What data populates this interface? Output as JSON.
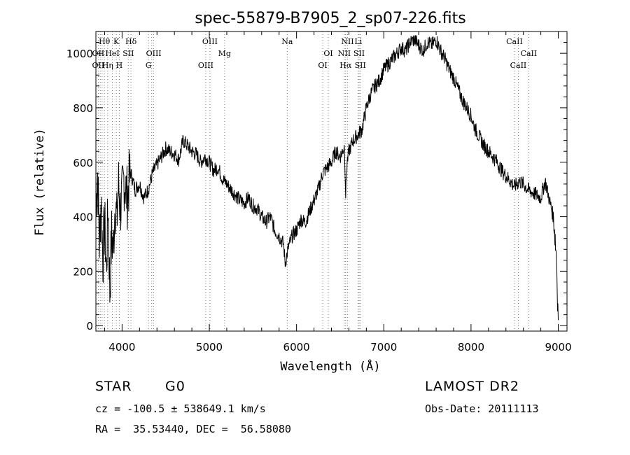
{
  "chart_data": {
    "type": "line",
    "title": "spec-55879-B7905_2_sp07-226.fits",
    "xlabel": "Wavelength (Å)",
    "ylabel": "Flux (relative)",
    "xlim": [
      3700,
      9100
    ],
    "ylim": [
      -20,
      1080
    ],
    "xticks": [
      4000,
      5000,
      6000,
      7000,
      8000,
      9000
    ],
    "yticks": [
      0,
      200,
      400,
      600,
      800,
      1000
    ],
    "grid": false,
    "series": [
      {
        "values_note": "",
        "x": [
          3700,
          3720,
          3740,
          3760,
          3780,
          3800,
          3820,
          3840,
          3860,
          3880,
          3900,
          3920,
          3940,
          3960,
          3980,
          4000,
          4020,
          4040,
          4060,
          4080,
          4100,
          4150,
          4200,
          4250,
          4300,
          4350,
          4400,
          4450,
          4500,
          4550,
          4600,
          4650,
          4700,
          4750,
          4800,
          4850,
          4900,
          4950,
          5000,
          5050,
          5100,
          5150,
          5200,
          5250,
          5300,
          5350,
          5400,
          5450,
          5500,
          5550,
          5600,
          5650,
          5700,
          5750,
          5800,
          5850,
          5870,
          5890,
          5900,
          5950,
          6000,
          6050,
          6100,
          6150,
          6200,
          6250,
          6300,
          6350,
          6400,
          6450,
          6500,
          6550,
          6563,
          6580,
          6600,
          6650,
          6700,
          6750,
          6800,
          6850,
          6900,
          6950,
          7000,
          7050,
          7100,
          7150,
          7200,
          7250,
          7300,
          7350,
          7400,
          7450,
          7500,
          7550,
          7600,
          7650,
          7700,
          7750,
          7800,
          7850,
          7900,
          7950,
          8000,
          8050,
          8100,
          8150,
          8200,
          8250,
          8300,
          8350,
          8400,
          8450,
          8500,
          8550,
          8600,
          8650,
          8700,
          8750,
          8800,
          8850,
          8900,
          8950,
          8980,
          9000
        ],
        "y": [
          450,
          560,
          300,
          480,
          240,
          380,
          200,
          450,
          120,
          330,
          280,
          460,
          380,
          520,
          430,
          470,
          540,
          510,
          470,
          530,
          560,
          500,
          520,
          470,
          500,
          560,
          590,
          620,
          650,
          640,
          630,
          610,
          680,
          660,
          640,
          630,
          600,
          620,
          600,
          570,
          580,
          540,
          520,
          500,
          480,
          460,
          450,
          470,
          440,
          430,
          400,
          380,
          400,
          350,
          330,
          300,
          230,
          260,
          280,
          330,
          350,
          390,
          380,
          420,
          460,
          500,
          560,
          580,
          600,
          640,
          620,
          660,
          480,
          600,
          640,
          680,
          700,
          720,
          800,
          850,
          880,
          900,
          940,
          960,
          980,
          1000,
          1020,
          1010,
          1040,
          1050,
          1030,
          1010,
          1040,
          1030,
          1050,
          1010,
          980,
          940,
          910,
          870,
          830,
          800,
          770,
          720,
          690,
          660,
          640,
          620,
          600,
          570,
          550,
          530,
          510,
          530,
          520,
          500,
          490,
          480,
          470,
          530,
          460,
          390,
          250,
          20
        ]
      }
    ],
    "line_marks": [
      {
        "label": "Hθ",
        "x": 3798,
        "row": 1
      },
      {
        "label": "K",
        "x": 3934,
        "row": 1
      },
      {
        "label": "Hδ",
        "x": 4102,
        "row": 1
      },
      {
        "label": "OIII",
        "x": 5007,
        "row": 1
      },
      {
        "label": "Na",
        "x": 5893,
        "row": 1
      },
      {
        "label": "NII",
        "x": 6584,
        "row": 1
      },
      {
        "label": "Li",
        "x": 6708,
        "row": 1
      },
      {
        "label": "CaII",
        "x": 8498,
        "row": 1
      },
      {
        "label": "OII",
        "x": 3727,
        "row": 2
      },
      {
        "label": "HeI",
        "x": 3889,
        "row": 2
      },
      {
        "label": "SII",
        "x": 4072,
        "row": 2
      },
      {
        "label": "OIII",
        "x": 4363,
        "row": 2
      },
      {
        "label": "Mg",
        "x": 5175,
        "row": 2
      },
      {
        "label": "OI",
        "x": 6364,
        "row": 2
      },
      {
        "label": "NII",
        "x": 6548,
        "row": 2
      },
      {
        "label": "SII",
        "x": 6717,
        "row": 2
      },
      {
        "label": "CaII",
        "x": 8662,
        "row": 2
      },
      {
        "label": "OII",
        "x": 3727,
        "row": 3
      },
      {
        "label": "Hη",
        "x": 3835,
        "row": 3
      },
      {
        "label": "H",
        "x": 3968,
        "row": 3
      },
      {
        "label": "G",
        "x": 4304,
        "row": 3
      },
      {
        "label": "OIII",
        "x": 4959,
        "row": 3
      },
      {
        "label": "OI",
        "x": 6300,
        "row": 3
      },
      {
        "label": "Hα",
        "x": 6563,
        "row": 3
      },
      {
        "label": "SII",
        "x": 6731,
        "row": 3
      },
      {
        "label": "CaII",
        "x": 8542,
        "row": 3
      }
    ],
    "dotted_lines": [
      3727,
      3750,
      3771,
      3798,
      3835,
      3889,
      3934,
      3968,
      4072,
      4102,
      4304,
      4340,
      4363,
      4959,
      5007,
      5175,
      5893,
      6300,
      6364,
      6548,
      6563,
      6584,
      6708,
      6717,
      6731,
      8498,
      8542,
      8662
    ],
    "red_lines": [
      5007,
      6563,
      6731
    ]
  },
  "info": {
    "object_class": "STAR",
    "subclass": "G0",
    "survey": "LAMOST DR2",
    "cz": "cz = -100.5 ± 538649.1 km/s",
    "obs_date": "Obs-Date: 20111113",
    "coords": "RA =  35.53440, DEC =  56.58080"
  }
}
